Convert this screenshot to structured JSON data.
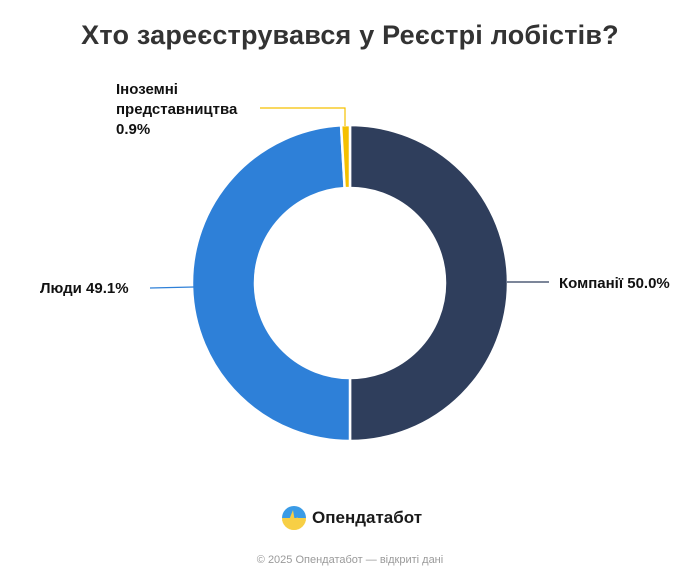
{
  "title": "Хто зареєструвався у Реєстрі лобістів?",
  "chart_data": {
    "type": "pie",
    "variant": "donut",
    "title": "Хто зареєструвався у Реєстрі лобістів?",
    "categories": [
      "Компанії",
      "Люди",
      "Іноземні представництва"
    ],
    "values": [
      50.0,
      49.1,
      0.9
    ],
    "unit": "%",
    "colors": [
      "#2f3e5c",
      "#2e80d8",
      "#f5c000"
    ],
    "start_angle": "12 o'clock, clockwise",
    "labels": [
      {
        "text": "Компанії 50.0%",
        "position": "right"
      },
      {
        "text": "Люди 49.1%",
        "position": "left"
      },
      {
        "text": "Іноземні представництва 0.9%",
        "position": "top-left"
      }
    ]
  },
  "labels": {
    "companies": "Компанії 50.0%",
    "people": "Люди 49.1%",
    "foreign_line1": "Іноземні",
    "foreign_line2": "представництва",
    "foreign_line3": "0.9%"
  },
  "brand": {
    "name": "Опендатабот",
    "icon": "opendatabot-logo-icon"
  },
  "footer": "© 2025 Опендатабот — відкриті дані"
}
